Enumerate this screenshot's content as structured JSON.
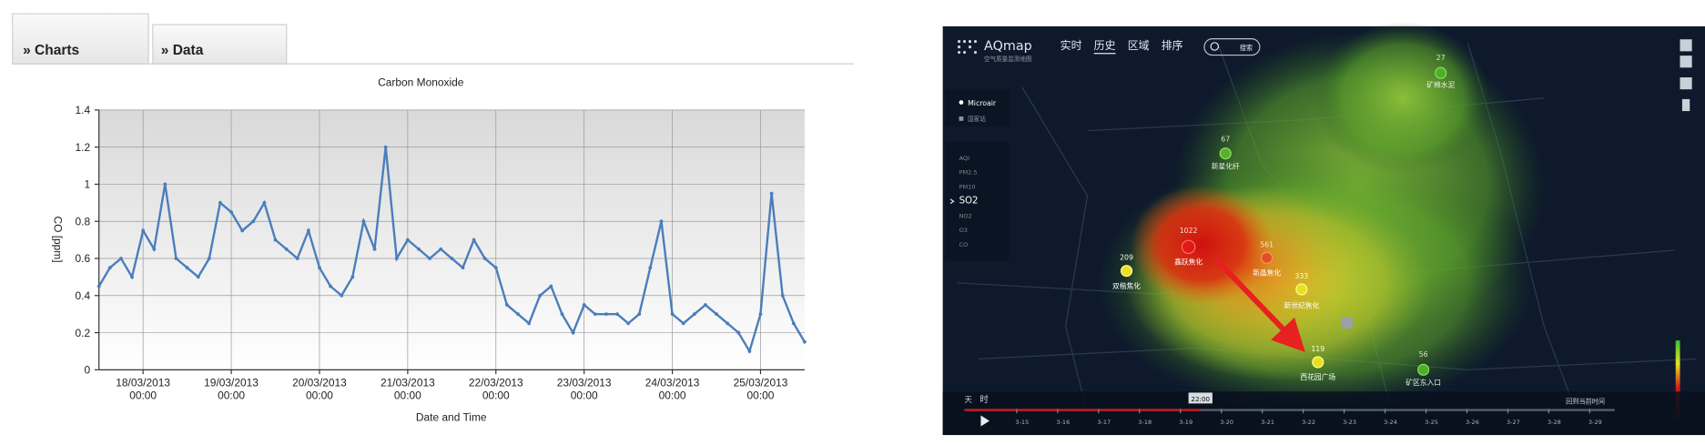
{
  "tabs": [
    "» Charts",
    "» Data"
  ],
  "chart_data": {
    "type": "line",
    "title": "Carbon Monoxide",
    "x_label": "Date and Time",
    "y_label": "CO [ppm]",
    "x": [
      "17/03/2013 12:00",
      "17/03/2013 15:00",
      "17/03/2013 18:00",
      "17/03/2013 21:00",
      "18/03/2013 00:00",
      "18/03/2013 03:00",
      "18/03/2013 06:00",
      "18/03/2013 09:00",
      "18/03/2013 12:00",
      "18/03/2013 15:00",
      "18/03/2013 18:00",
      "18/03/2013 21:00",
      "19/03/2013 00:00",
      "19/03/2013 03:00",
      "19/03/2013 06:00",
      "19/03/2013 09:00",
      "19/03/2013 12:00",
      "19/03/2013 15:00",
      "19/03/2013 18:00",
      "19/03/2013 21:00",
      "20/03/2013 00:00",
      "20/03/2013 03:00",
      "20/03/2013 06:00",
      "20/03/2013 09:00",
      "20/03/2013 12:00",
      "20/03/2013 15:00",
      "20/03/2013 18:00",
      "20/03/2013 21:00",
      "21/03/2013 00:00",
      "21/03/2013 03:00",
      "21/03/2013 06:00",
      "21/03/2013 09:00",
      "21/03/2013 12:00",
      "21/03/2013 15:00",
      "21/03/2013 18:00",
      "21/03/2013 21:00",
      "22/03/2013 00:00",
      "22/03/2013 03:00",
      "22/03/2013 06:00",
      "22/03/2013 09:00",
      "22/03/2013 12:00",
      "22/03/2013 15:00",
      "22/03/2013 18:00",
      "22/03/2013 21:00",
      "23/03/2013 00:00",
      "23/03/2013 03:00",
      "23/03/2013 06:00",
      "23/03/2013 09:00",
      "23/03/2013 12:00",
      "23/03/2013 15:00",
      "23/03/2013 18:00",
      "23/03/2013 21:00",
      "24/03/2013 00:00",
      "24/03/2013 03:00",
      "24/03/2013 06:00",
      "24/03/2013 09:00",
      "24/03/2013 12:00",
      "24/03/2013 15:00",
      "24/03/2013 18:00",
      "24/03/2013 21:00",
      "25/03/2013 00:00",
      "25/03/2013 03:00",
      "25/03/2013 06:00",
      "25/03/2013 09:00",
      "25/03/2013 12:00"
    ],
    "values": [
      0.45,
      0.55,
      0.6,
      0.5,
      0.75,
      0.65,
      1.0,
      0.6,
      0.55,
      0.5,
      0.6,
      0.9,
      0.85,
      0.75,
      0.8,
      0.9,
      0.7,
      0.65,
      0.6,
      0.75,
      0.55,
      0.45,
      0.4,
      0.5,
      0.8,
      0.65,
      1.2,
      0.6,
      0.7,
      0.65,
      0.6,
      0.65,
      0.6,
      0.55,
      0.7,
      0.6,
      0.55,
      0.35,
      0.3,
      0.25,
      0.4,
      0.45,
      0.3,
      0.2,
      0.35,
      0.3,
      0.3,
      0.3,
      0.25,
      0.3,
      0.55,
      0.8,
      0.3,
      0.25,
      0.3,
      0.35,
      0.3,
      0.25,
      0.2,
      0.1,
      0.3,
      0.95,
      0.4,
      0.25,
      0.15
    ],
    "color": "#4a7ebb",
    "xlim": [
      "17/03/2013 12:00",
      "25/03/2013 12:00"
    ],
    "xticks": [
      "18/03/2013 00:00",
      "19/03/2013 00:00",
      "20/03/2013 00:00",
      "21/03/2013 00:00",
      "22/03/2013 00:00",
      "23/03/2013 00:00",
      "24/03/2013 00:00",
      "25/03/2013 00:00"
    ],
    "ylim": [
      0,
      1.4
    ],
    "yticks": [
      0,
      0.2,
      0.4,
      0.6,
      0.8,
      1,
      1.2,
      1.4
    ],
    "grid": true
  },
  "map": {
    "brand": "AQmap",
    "tagline": "空气质量监测地图",
    "nav": [
      "实时",
      "历史",
      "区域",
      "排序"
    ],
    "search": "搜索",
    "layers": [
      "Microair",
      "国家站"
    ],
    "pollutants": [
      "AQI",
      "PM2.5",
      "PM10",
      "SO2",
      "NO2",
      "O3",
      "CO"
    ],
    "stations": [
      {
        "value": 27,
        "name": "矿棉水泥"
      },
      {
        "value": 67,
        "name": "新星化纤"
      },
      {
        "value": 1022,
        "name": "鑫跃焦化"
      },
      {
        "value": 561,
        "name": "新晶焦化"
      },
      {
        "value": 209,
        "name": "双楷焦化"
      },
      {
        "value": 333,
        "name": "新世纪焦化"
      },
      {
        "value": 119,
        "name": "西花园广场"
      },
      {
        "value": 56,
        "name": "矿区东入口"
      }
    ],
    "time_units": [
      "天",
      "时"
    ],
    "time_marker": "22:00",
    "dates": [
      "3-15",
      "3-16",
      "3-17",
      "3-18",
      "3-19",
      "3-20",
      "3-21",
      "3-22",
      "3-23",
      "3-24",
      "3-25",
      "3-26",
      "3-27",
      "3-28",
      "3-29"
    ],
    "reset": "回到当前时间"
  }
}
